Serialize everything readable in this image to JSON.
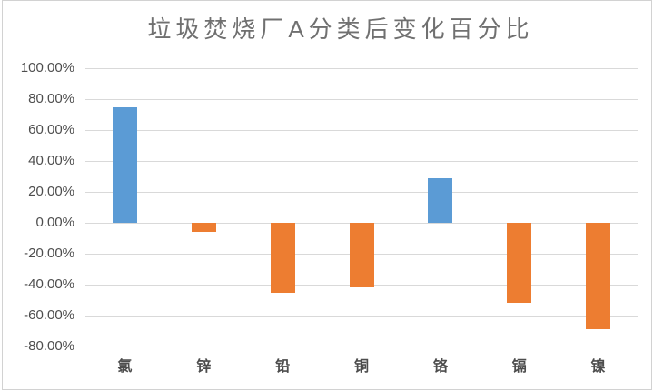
{
  "chart_data": {
    "type": "bar",
    "title": "垃圾焚烧厂A分类后变化百分比",
    "categories": [
      "氯",
      "锌",
      "铅",
      "铜",
      "铬",
      "镉",
      "镍"
    ],
    "values": [
      75,
      -6,
      -45,
      -42,
      29,
      -52,
      -69
    ],
    "value_unit": "%",
    "xlabel": "",
    "ylabel": "",
    "ylim": [
      -80,
      100
    ],
    "ytick_step": 20,
    "ytick_labels": [
      "100.00%",
      "80.00%",
      "60.00%",
      "40.00%",
      "20.00%",
      "0.00%",
      "-20.00%",
      "-40.00%",
      "-60.00%",
      "-80.00%"
    ],
    "grid": true,
    "legend": "none",
    "colors": {
      "positive_bar": "#5b9bd5",
      "negative_bar": "#ed7d31",
      "gridline": "#d9d9d9",
      "title_text": "#707070",
      "axis_text": "#4d4d4d",
      "frame_border": "#d2d2d2",
      "background": "#ffffff"
    }
  }
}
